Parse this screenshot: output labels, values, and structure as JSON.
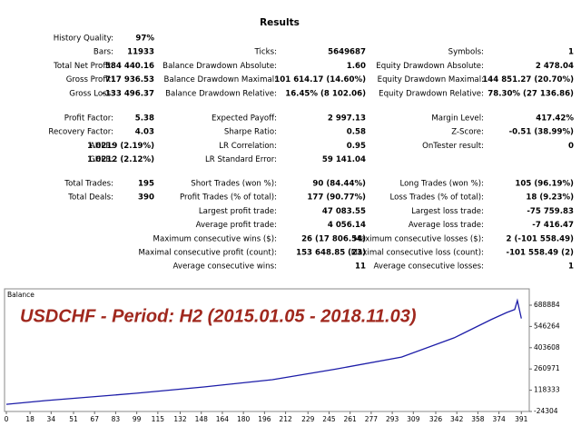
{
  "title": "Results",
  "groups": [
    [
      [
        [
          "History Quality:",
          "97%"
        ],
        null,
        null
      ],
      [
        [
          "Bars:",
          "11933"
        ],
        [
          "Ticks:",
          "5649687"
        ],
        [
          "Symbols:",
          "1"
        ]
      ],
      [
        [
          "Total Net Profit:",
          "584 440.16"
        ],
        [
          "Balance Drawdown Absolute:",
          "1.60"
        ],
        [
          "Equity Drawdown Absolute:",
          "2 478.04"
        ]
      ],
      [
        [
          "Gross Profit:",
          "717 936.53"
        ],
        [
          "Balance Drawdown Maximal:",
          "101 614.17 (14.60%)"
        ],
        [
          "Equity Drawdown Maximal:",
          "144 851.27 (20.70%)"
        ]
      ],
      [
        [
          "Gross Loss:",
          "-133 496.37"
        ],
        [
          "Balance Drawdown Relative:",
          "16.45% (8 102.06)"
        ],
        [
          "Equity Drawdown Relative:",
          "78.30% (27 136.86)"
        ]
      ]
    ],
    [
      [
        [
          "Profit Factor:",
          "5.38"
        ],
        [
          "Expected Payoff:",
          "2 997.13"
        ],
        [
          "Margin Level:",
          "417.42%"
        ]
      ],
      [
        [
          "Recovery Factor:",
          "4.03"
        ],
        [
          "Sharpe Ratio:",
          "0.58"
        ],
        [
          "Z-Score:",
          "-0.51 (38.99%)"
        ]
      ],
      [
        [
          "AHPR:",
          "1.0219 (2.19%)"
        ],
        [
          "LR Correlation:",
          "0.95"
        ],
        [
          "OnTester result:",
          "0"
        ]
      ],
      [
        [
          "GHPR:",
          "1.0212 (2.12%)"
        ],
        [
          "LR Standard Error:",
          "59 141.04"
        ],
        null
      ]
    ],
    [
      [
        [
          "Total Trades:",
          "195"
        ],
        [
          "Short Trades (won %):",
          "90 (84.44%)"
        ],
        [
          "Long Trades (won %):",
          "105 (96.19%)"
        ]
      ],
      [
        [
          "Total Deals:",
          "390"
        ],
        [
          "Profit Trades (% of total):",
          "177 (90.77%)"
        ],
        [
          "Loss Trades (% of total):",
          "18 (9.23%)"
        ]
      ],
      [
        null,
        [
          "Largest profit trade:",
          "47 083.55"
        ],
        [
          "Largest loss trade:",
          "-75 759.83"
        ]
      ],
      [
        null,
        [
          "Average profit trade:",
          "4 056.14"
        ],
        [
          "Average loss trade:",
          "-7 416.47"
        ]
      ],
      [
        null,
        [
          "Maximum consecutive wins ($):",
          "26 (17 806.54)"
        ],
        [
          "Maximum consecutive losses ($):",
          "2 (-101 558.49)"
        ]
      ],
      [
        null,
        [
          "Maximal consecutive profit (count):",
          "153 648.85 (23)"
        ],
        [
          "Maximal consecutive loss (count):",
          "-101 558.49 (2)"
        ]
      ],
      [
        null,
        [
          "Average consecutive wins:",
          "11"
        ],
        [
          "Average consecutive losses:",
          "1"
        ]
      ]
    ]
  ],
  "chart_data": {
    "type": "line",
    "title": "Balance",
    "subtitle": "USDCHF - Period: H2 (2015.01.05 - 2018.11.03)",
    "x": [
      0,
      30,
      99,
      150,
      202,
      250,
      300,
      340,
      368,
      380,
      386,
      388,
      391
    ],
    "values": [
      24000,
      49000,
      98000,
      140000,
      189000,
      260000,
      341000,
      470000,
      592000,
      640000,
      660000,
      720000,
      600000
    ],
    "color": "#1c1ca8",
    "xlim": [
      0,
      397
    ],
    "xticks": [
      0,
      18,
      34,
      51,
      67,
      83,
      99,
      115,
      132,
      148,
      164,
      180,
      196,
      212,
      229,
      245,
      261,
      277,
      293,
      309,
      326,
      342,
      358,
      374,
      391
    ],
    "ylim": [
      -24304,
      798600
    ],
    "yticks": [
      -24304,
      118333,
      260971,
      403608,
      546264,
      688884
    ]
  }
}
